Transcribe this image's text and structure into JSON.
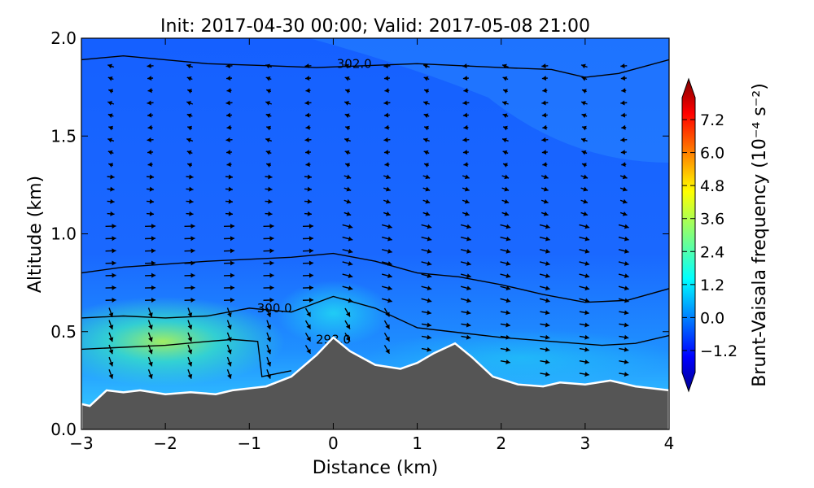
{
  "chart_data": {
    "type": "heatmap",
    "title": "Init: 2017-04-30 00:00; Valid: 2017-05-08 21:00",
    "xlabel": "Distance (km)",
    "ylabel": "Altitude (km)",
    "xlim": [
      -3,
      4
    ],
    "ylim": [
      0,
      2
    ],
    "x_ticks": [
      "−3",
      "−2",
      "−1",
      "0",
      "1",
      "2",
      "3",
      "4"
    ],
    "y_ticks": [
      "0.0",
      "0.5",
      "1.0",
      "1.5",
      "2.0"
    ],
    "colorbar": {
      "label": "Brunt-Vaisala frequency (10⁻⁴ s⁻²)",
      "range": [
        -2.0,
        8.0
      ],
      "ticks": [
        "−1.2",
        "0.0",
        "1.2",
        "2.4",
        "3.6",
        "4.8",
        "6.0",
        "7.2"
      ],
      "extend": "both",
      "colormap": "jet"
    },
    "terrain": {
      "color": "#555555",
      "distance_km": [
        -3.0,
        -2.9,
        -2.7,
        -2.5,
        -2.3,
        -2.0,
        -1.7,
        -1.4,
        -1.2,
        -1.0,
        -0.8,
        -0.5,
        -0.2,
        0.0,
        0.2,
        0.5,
        0.8,
        1.0,
        1.2,
        1.45,
        1.65,
        1.9,
        2.2,
        2.5,
        2.7,
        3.0,
        3.3,
        3.6,
        4.0
      ],
      "altitude_km": [
        0.13,
        0.12,
        0.2,
        0.19,
        0.2,
        0.18,
        0.19,
        0.18,
        0.2,
        0.21,
        0.22,
        0.27,
        0.38,
        0.47,
        0.4,
        0.33,
        0.31,
        0.34,
        0.39,
        0.44,
        0.37,
        0.27,
        0.23,
        0.22,
        0.24,
        0.23,
        0.25,
        0.22,
        0.2
      ]
    },
    "theta_contours": [
      {
        "label": "302.0",
        "distance_km": [
          -3.0,
          -2.5,
          -1.5,
          -0.8,
          -0.2,
          1.0,
          2.0,
          2.6,
          3.0,
          3.4,
          4.0
        ],
        "altitude_km": [
          1.89,
          1.91,
          1.87,
          1.86,
          1.85,
          1.87,
          1.85,
          1.84,
          1.8,
          1.82,
          1.89
        ]
      },
      {
        "label": "",
        "distance_km": [
          -3.0,
          -2.5,
          -1.5,
          -0.5,
          0.0,
          0.5,
          1.0,
          1.5,
          2.0,
          2.5,
          3.0,
          3.5,
          4.0
        ],
        "altitude_km": [
          0.8,
          0.83,
          0.86,
          0.88,
          0.9,
          0.86,
          0.8,
          0.78,
          0.74,
          0.69,
          0.65,
          0.66,
          0.72
        ]
      },
      {
        "label": "300.0",
        "distance_km": [
          -3.0,
          -2.5,
          -2.0,
          -1.5,
          -1.0,
          -0.5,
          0.0,
          0.5,
          1.0,
          1.4,
          2.0,
          2.6,
          3.2,
          3.6,
          4.0
        ],
        "altitude_km": [
          0.57,
          0.58,
          0.57,
          0.58,
          0.62,
          0.6,
          0.68,
          0.62,
          0.52,
          0.5,
          0.47,
          0.45,
          0.43,
          0.44,
          0.48
        ]
      },
      {
        "label": "298.0",
        "distance_km": [
          -3.0,
          -2.5,
          -2.0,
          -1.5,
          -1.2,
          -0.9,
          -0.85,
          -0.5
        ],
        "altitude_km": [
          0.41,
          0.42,
          0.43,
          0.45,
          0.46,
          0.45,
          0.27,
          0.3
        ]
      }
    ]
  }
}
